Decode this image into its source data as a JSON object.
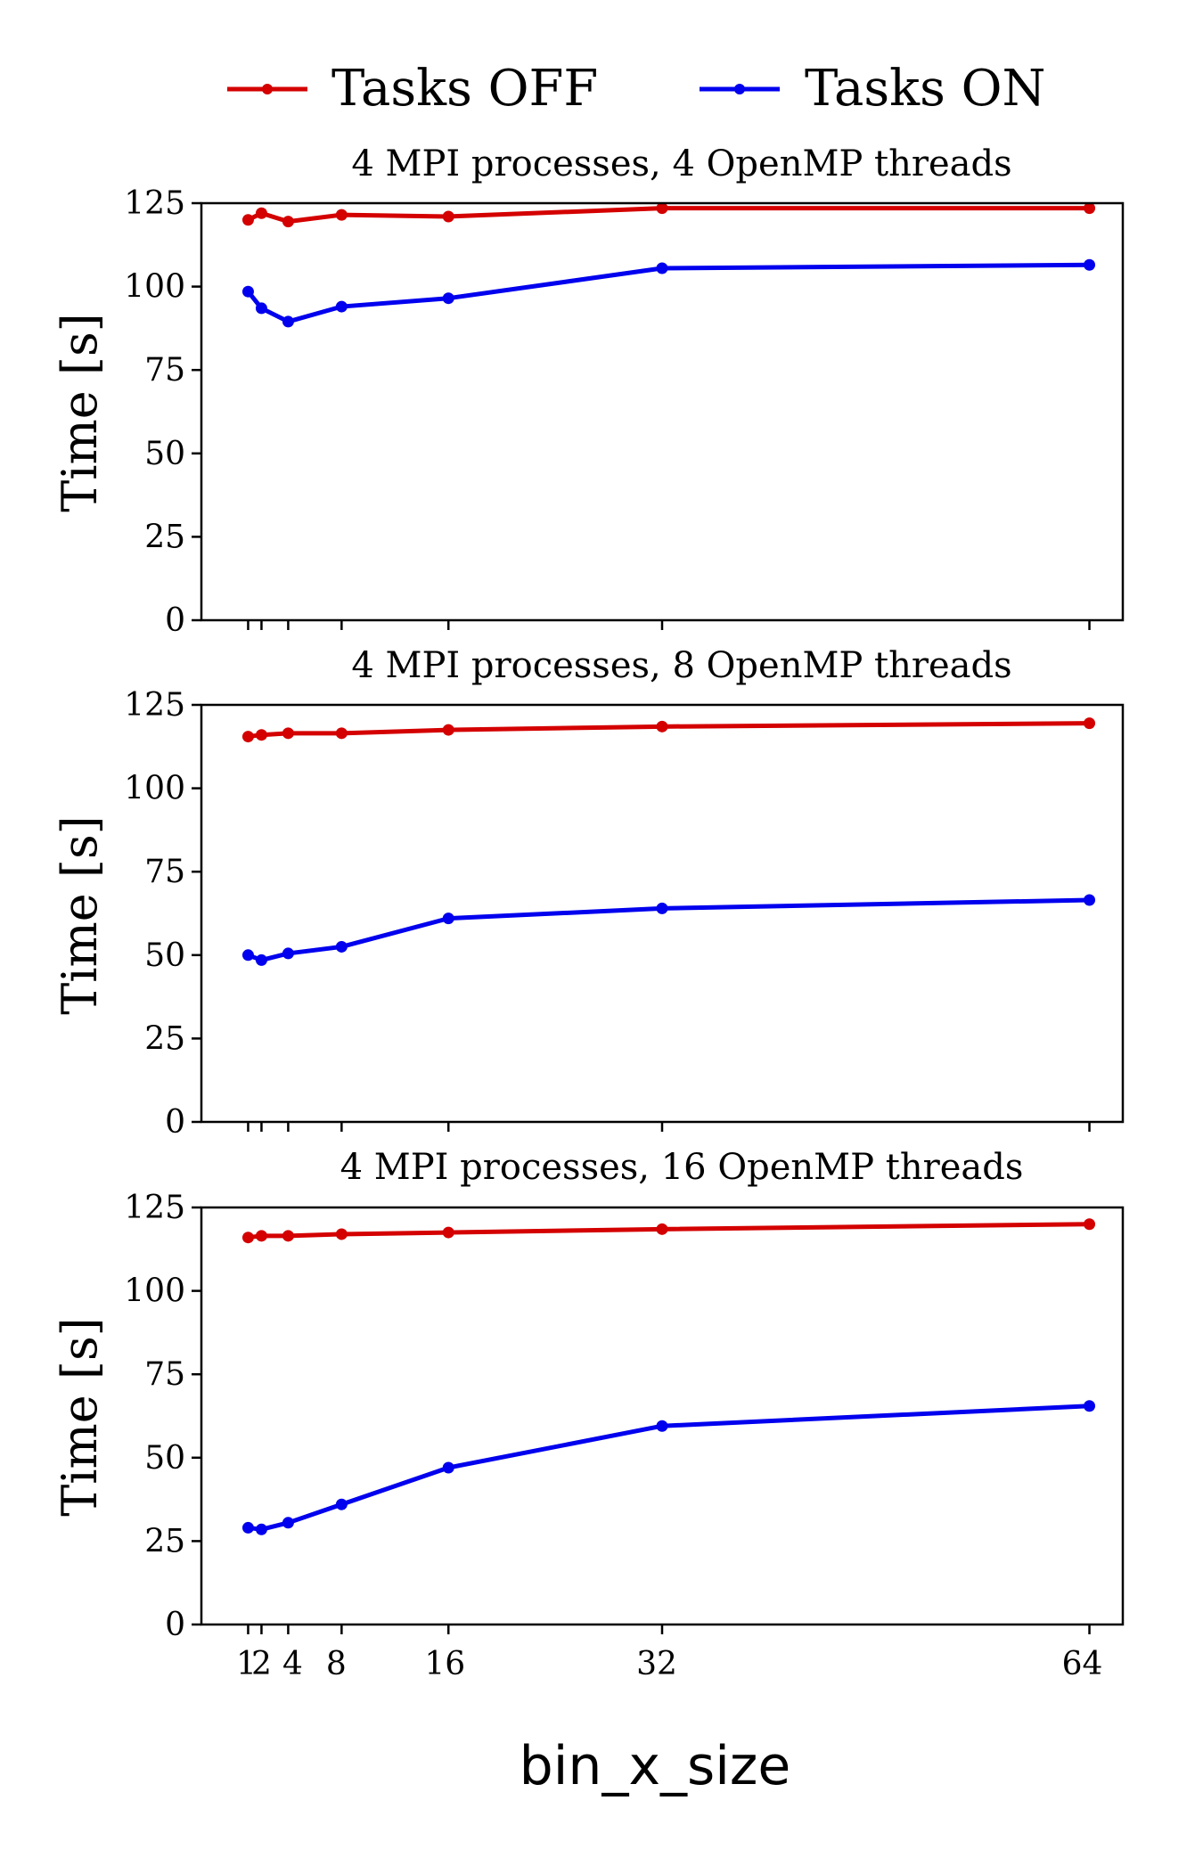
{
  "chart_data": {
    "type": "line",
    "shared_xlabel": "bin_x_size",
    "legend": {
      "placement": "top-center",
      "entries": [
        {
          "name": "Tasks OFF",
          "color": "#d40000"
        },
        {
          "name": "Tasks ON",
          "color": "#0000ee"
        }
      ]
    },
    "x_ticks": [
      1,
      2,
      4,
      8,
      16,
      32,
      64
    ],
    "x_tick_labels": [
      "1",
      "2",
      "4",
      "8",
      "16",
      "32",
      "64"
    ],
    "y_ticks": [
      0,
      25,
      50,
      75,
      100,
      125
    ],
    "y_tick_labels": [
      "0",
      "25",
      "50",
      "75",
      "100",
      "125"
    ],
    "panels": [
      {
        "title": "4 MPI processes, 4 OpenMP threads",
        "ylabel": "Time [s]",
        "ylim": [
          0,
          125
        ],
        "x": [
          1,
          2,
          4,
          8,
          16,
          32,
          64
        ],
        "series": [
          {
            "name": "Tasks OFF",
            "color": "#d40000",
            "values": [
              120,
              122,
              119.5,
              121.5,
              121,
              123.5,
              123.5
            ]
          },
          {
            "name": "Tasks ON",
            "color": "#0000ee",
            "values": [
              98.5,
              93.5,
              89.5,
              94,
              96.5,
              105.5,
              106.5
            ]
          }
        ]
      },
      {
        "title": "4 MPI processes, 8 OpenMP threads",
        "ylabel": "Time [s]",
        "ylim": [
          0,
          125
        ],
        "x": [
          1,
          2,
          4,
          8,
          16,
          32,
          64
        ],
        "series": [
          {
            "name": "Tasks OFF",
            "color": "#d40000",
            "values": [
              115.5,
              116,
              116.5,
              116.5,
              117.5,
              118.5,
              119.5
            ]
          },
          {
            "name": "Tasks ON",
            "color": "#0000ee",
            "values": [
              50,
              48.5,
              50.5,
              52.5,
              61,
              64,
              66.5
            ]
          }
        ]
      },
      {
        "title": "4 MPI processes, 16 OpenMP threads",
        "ylabel": "Time [s]",
        "ylim": [
          0,
          125
        ],
        "x": [
          1,
          2,
          4,
          8,
          16,
          32,
          64
        ],
        "series": [
          {
            "name": "Tasks OFF",
            "color": "#d40000",
            "values": [
              116,
              116.5,
              116.5,
              117,
              117.5,
              118.5,
              120
            ]
          },
          {
            "name": "Tasks ON",
            "color": "#0000ee",
            "values": [
              29,
              28.5,
              30.5,
              36,
              47,
              59.5,
              65.5
            ]
          }
        ]
      }
    ]
  }
}
